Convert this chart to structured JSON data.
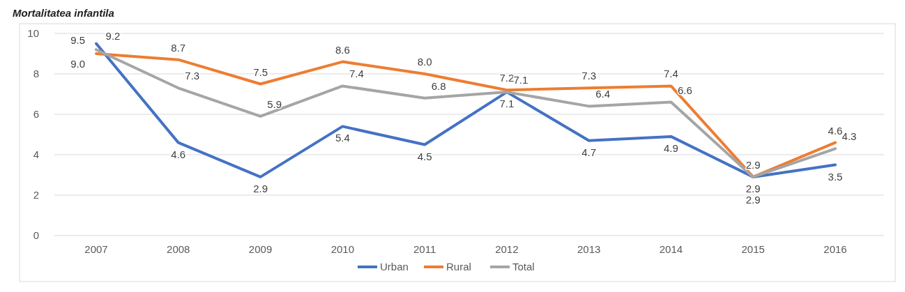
{
  "chart_data": {
    "type": "line",
    "title": "Mortalitatea infantila",
    "categories": [
      "2007",
      "2008",
      "2009",
      "2010",
      "2011",
      "2012",
      "2013",
      "2014",
      "2015",
      "2016"
    ],
    "series": [
      {
        "name": "Urban",
        "color": "#4472c4",
        "values": [
          9.5,
          4.6,
          2.9,
          5.4,
          4.5,
          7.1,
          4.7,
          4.9,
          2.9,
          3.5
        ],
        "value_labels": [
          "9.5",
          "4.6",
          "2.9",
          "5.4",
          "4.5",
          "7.1",
          "4.7",
          "4.9",
          "2.9",
          "3.5"
        ]
      },
      {
        "name": "Rural",
        "color": "#ed7d31",
        "values": [
          9.0,
          8.7,
          7.5,
          8.6,
          8.0,
          7.2,
          7.3,
          7.4,
          2.9,
          4.6
        ],
        "value_labels": [
          "9.0",
          "8.7",
          "7.5",
          "8.6",
          "8.0",
          "7.2",
          "7.3",
          "7.4",
          "2.9",
          "4.6"
        ]
      },
      {
        "name": "Total",
        "color": "#a5a5a5",
        "values": [
          9.2,
          7.3,
          5.9,
          7.4,
          6.8,
          7.1,
          6.4,
          6.6,
          2.9,
          4.3
        ],
        "value_labels": [
          "9.2",
          "7.3",
          "5.9",
          "7.4",
          "6.8",
          "7.1",
          "6.4",
          "6.6",
          "2.9",
          "4.3"
        ]
      }
    ],
    "ylim": [
      0,
      10
    ],
    "yticks": [
      0,
      2,
      4,
      6,
      8,
      10
    ],
    "grid": "y",
    "legend": "bottom",
    "marker": "none",
    "line_style": "solid"
  }
}
